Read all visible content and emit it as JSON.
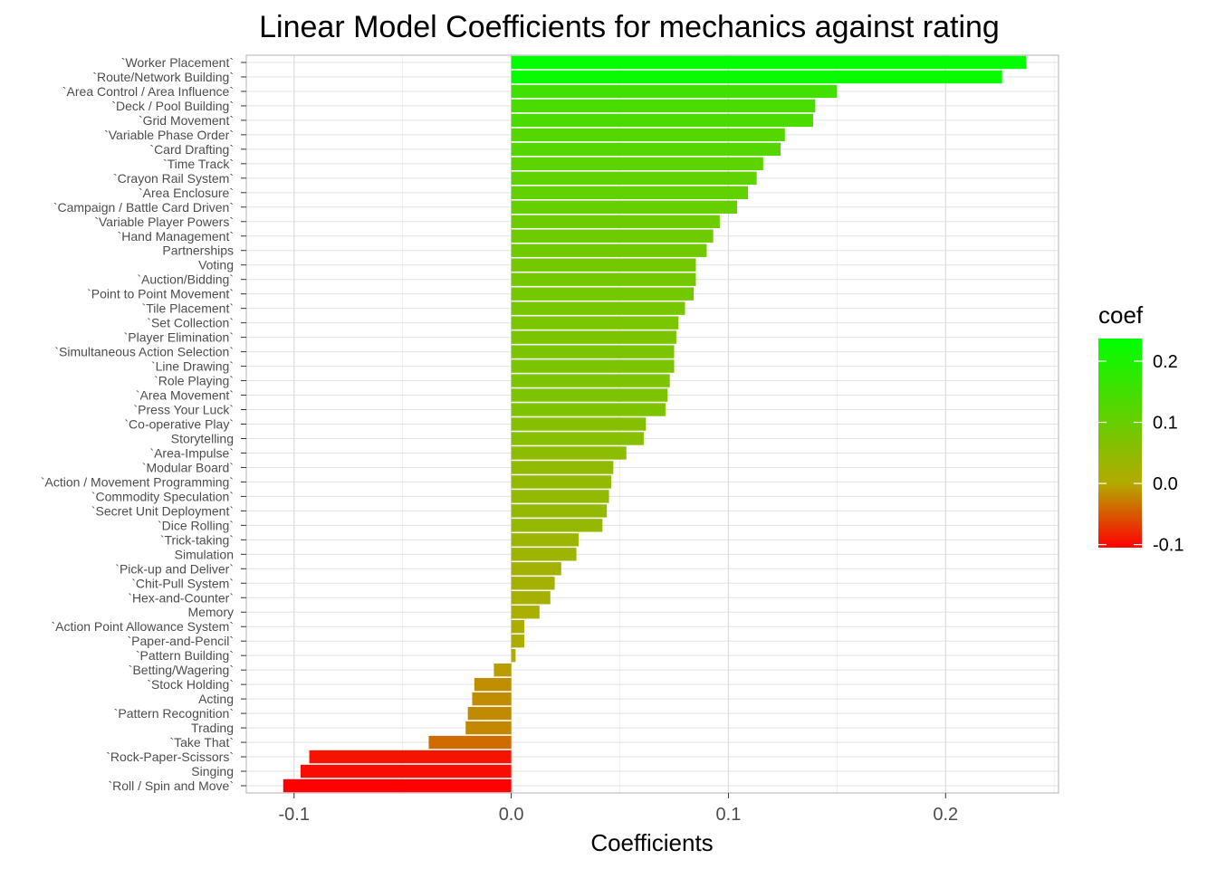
{
  "chart_data": {
    "type": "bar",
    "orientation": "horizontal",
    "title": "Linear Model Coefficients for mechanics against rating",
    "xlabel": "Coefficients",
    "ylabel": "",
    "xlim": [
      -0.122,
      0.252
    ],
    "x_ticks": [
      -0.1,
      0.0,
      0.1,
      0.2
    ],
    "x_tick_labels": [
      "-0.1",
      "0.0",
      "0.1",
      "0.2"
    ],
    "grid": true,
    "legend": {
      "title": "coef",
      "placement": "right",
      "type": "colorbar",
      "range": [
        -0.105,
        0.237
      ],
      "ticks": [
        -0.1,
        0.0,
        0.1,
        0.2
      ],
      "tick_labels": [
        "-0.1",
        "0.0",
        "0.1",
        "0.2"
      ]
    },
    "colors": {
      "low": "#ff0000",
      "mid": "#b4aa00",
      "high": "#00ff00"
    },
    "categories": [
      "`Worker Placement`",
      "`Route/Network Building`",
      "`Area Control / Area Influence`",
      "`Deck / Pool Building`",
      "`Grid Movement`",
      "`Variable Phase Order`",
      "`Card Drafting`",
      "`Time Track`",
      "`Crayon Rail System`",
      "`Area Enclosure`",
      "`Campaign / Battle Card Driven`",
      "`Variable Player Powers`",
      "`Hand Management`",
      "Partnerships",
      "Voting",
      "`Auction/Bidding`",
      "`Point to Point Movement`",
      "`Tile Placement`",
      "`Set Collection`",
      "`Player Elimination`",
      "`Simultaneous Action Selection`",
      "`Line Drawing`",
      "`Role Playing`",
      "`Area Movement`",
      "`Press Your Luck`",
      "`Co-operative Play`",
      "Storytelling",
      "`Area-Impulse`",
      "`Modular Board`",
      "`Action / Movement Programming`",
      "`Commodity Speculation`",
      "`Secret Unit Deployment`",
      "`Dice Rolling`",
      "`Trick-taking`",
      "Simulation",
      "`Pick-up and Deliver`",
      "`Chit-Pull System`",
      "`Hex-and-Counter`",
      "Memory",
      "`Action Point Allowance System`",
      "`Paper-and-Pencil`",
      "`Pattern Building`",
      "`Betting/Wagering`",
      "`Stock Holding`",
      "Acting",
      "`Pattern Recognition`",
      "Trading",
      "`Take That`",
      "`Rock-Paper-Scissors`",
      "Singing",
      "`Roll / Spin and Move`"
    ],
    "values": [
      0.237,
      0.226,
      0.15,
      0.14,
      0.139,
      0.126,
      0.124,
      0.116,
      0.113,
      0.109,
      0.104,
      0.096,
      0.093,
      0.09,
      0.085,
      0.085,
      0.084,
      0.08,
      0.077,
      0.076,
      0.075,
      0.075,
      0.073,
      0.072,
      0.071,
      0.062,
      0.061,
      0.053,
      0.047,
      0.046,
      0.045,
      0.044,
      0.042,
      0.031,
      0.03,
      0.023,
      0.02,
      0.018,
      0.013,
      0.006,
      0.006,
      0.002,
      -0.008,
      -0.017,
      -0.018,
      -0.02,
      -0.021,
      -0.038,
      -0.093,
      -0.097,
      -0.105
    ]
  }
}
